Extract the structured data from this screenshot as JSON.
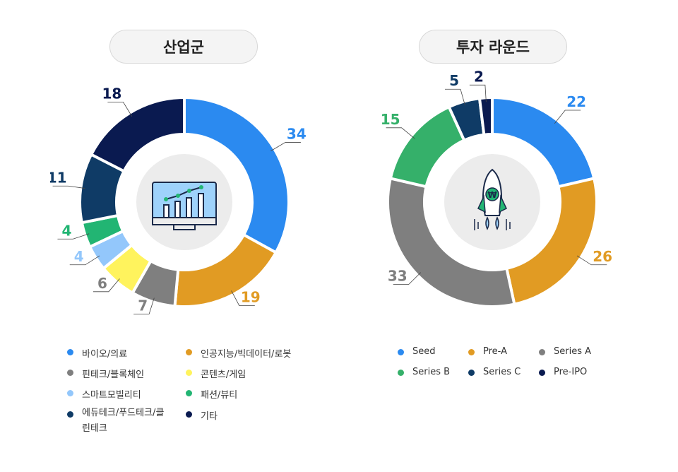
{
  "chart_data": [
    {
      "type": "pie",
      "title": "산업군",
      "donut": true,
      "center_icon": "monitor-chart-icon",
      "categories": [
        "바이오/의료",
        "인공지능/빅데이터/로봇",
        "핀테크/블록체인",
        "콘텐츠/게임",
        "스마트모빌리티",
        "패션/뷰티",
        "에듀테크/푸드테크/클린테크",
        "기타"
      ],
      "values": [
        34,
        19,
        7,
        6,
        4,
        4,
        11,
        18
      ],
      "colors": [
        "#2b8af0",
        "#e19b23",
        "#7f7f7f",
        "#fff35d",
        "#93c7fb",
        "#22b573",
        "#0f3b66",
        "#0a1a50"
      ],
      "label_colors": [
        "#2b8af0",
        "#e19b23",
        "#7f7f7f",
        "#7f7f7f",
        "#93c7fb",
        "#22b573",
        "#0f3b66",
        "#0a1a50"
      ],
      "legend": "bottom"
    },
    {
      "type": "pie",
      "title": "투자 라운드",
      "donut": true,
      "center_icon": "rocket-won-icon",
      "categories": [
        "Seed",
        "Pre-A",
        "Series A",
        "Series B",
        "Series C",
        "Pre-IPO"
      ],
      "values": [
        22,
        26,
        33,
        15,
        5,
        2
      ],
      "colors": [
        "#2b8af0",
        "#e19b23",
        "#7f7f7f",
        "#35b06a",
        "#0f3b66",
        "#0a1a50"
      ],
      "label_colors": [
        "#2b8af0",
        "#e19b23",
        "#7f7f7f",
        "#35b06a",
        "#0f3b66",
        "#0a1a50"
      ],
      "legend": "bottom"
    }
  ]
}
